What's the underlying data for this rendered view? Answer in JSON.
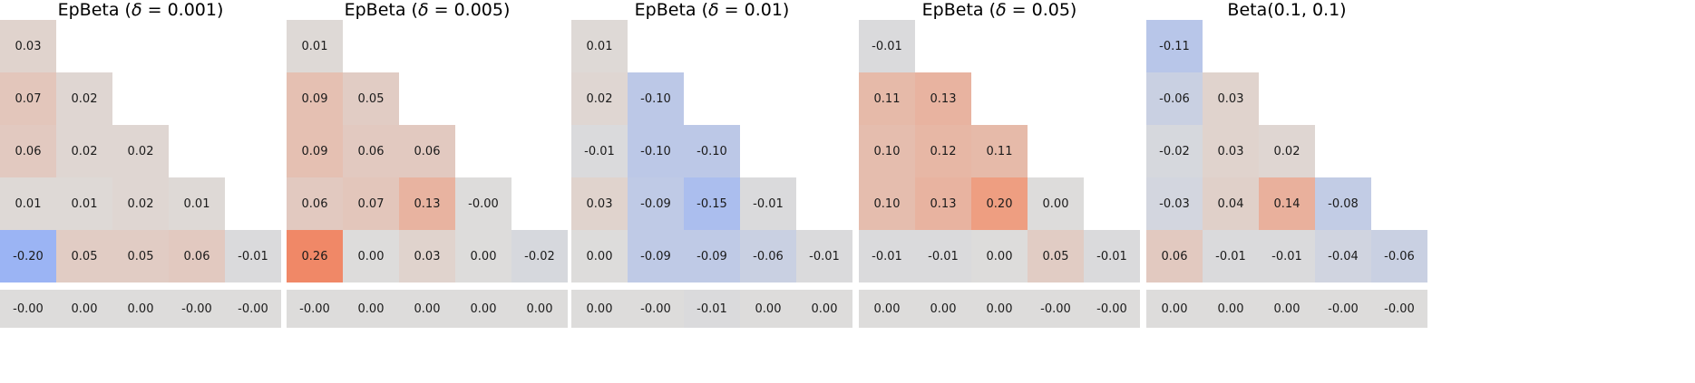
{
  "chart_data": {
    "type": "heatmap",
    "layout_hint": {
      "panel_count": 5,
      "triangle_rows": 5,
      "separate_bottom_row": true,
      "grid": false,
      "legend": "none"
    },
    "colormap": {
      "vmin": -0.5,
      "vmax": 0.5,
      "text_color": "#1a1a1a",
      "stops": [
        {
          "pos": 0.0,
          "color": "#3b4cc0"
        },
        {
          "pos": 0.25,
          "color": "#8aaafa"
        },
        {
          "pos": 0.5,
          "color": "#dddcdb"
        },
        {
          "pos": 0.75,
          "color": "#f28e6a"
        },
        {
          "pos": 1.0,
          "color": "#b40426"
        }
      ]
    },
    "panels": [
      {
        "title": "EpBeta (δ = 0.001)",
        "rows": [
          [
            "0.03"
          ],
          [
            "0.07",
            "0.02"
          ],
          [
            "0.06",
            "0.02",
            "0.02"
          ],
          [
            "0.01",
            "0.01",
            "0.02",
            "0.01"
          ],
          [
            "-0.20",
            "0.05",
            "0.05",
            "0.06",
            "-0.01"
          ]
        ],
        "bottom_row": [
          "-0.00",
          "0.00",
          "0.00",
          "-0.00",
          "-0.00"
        ]
      },
      {
        "title": "EpBeta (δ = 0.005)",
        "rows": [
          [
            "0.01"
          ],
          [
            "0.09",
            "0.05"
          ],
          [
            "0.09",
            "0.06",
            "0.06"
          ],
          [
            "0.06",
            "0.07",
            "0.13",
            "-0.00"
          ],
          [
            "0.26",
            "0.00",
            "0.03",
            "0.00",
            "-0.02"
          ]
        ],
        "bottom_row": [
          "-0.00",
          "0.00",
          "0.00",
          "0.00",
          "0.00"
        ]
      },
      {
        "title": "EpBeta (δ = 0.01)",
        "rows": [
          [
            "0.01"
          ],
          [
            "0.02",
            "-0.10"
          ],
          [
            "-0.01",
            "-0.10",
            "-0.10"
          ],
          [
            "0.03",
            "-0.09",
            "-0.15",
            "-0.01"
          ],
          [
            "0.00",
            "-0.09",
            "-0.09",
            "-0.06",
            "-0.01"
          ]
        ],
        "bottom_row": [
          "0.00",
          "-0.00",
          "-0.01",
          "0.00",
          "0.00"
        ]
      },
      {
        "title": "EpBeta (δ = 0.05)",
        "rows": [
          [
            "-0.01"
          ],
          [
            "0.11",
            "0.13"
          ],
          [
            "0.10",
            "0.12",
            "0.11"
          ],
          [
            "0.10",
            "0.13",
            "0.20",
            "0.00"
          ],
          [
            "-0.01",
            "-0.01",
            "0.00",
            "0.05",
            "-0.01"
          ]
        ],
        "bottom_row": [
          "0.00",
          "0.00",
          "0.00",
          "-0.00",
          "-0.00"
        ]
      },
      {
        "title": "Beta(0.1, 0.1)",
        "rows": [
          [
            "-0.11"
          ],
          [
            "-0.06",
            "0.03"
          ],
          [
            "-0.02",
            "0.03",
            "0.02"
          ],
          [
            "-0.03",
            "0.04",
            "0.14",
            "-0.08"
          ],
          [
            "0.06",
            "-0.01",
            "-0.01",
            "-0.04",
            "-0.06"
          ]
        ],
        "bottom_row": [
          "0.00",
          "0.00",
          "0.00",
          "-0.00",
          "-0.00"
        ]
      }
    ]
  }
}
